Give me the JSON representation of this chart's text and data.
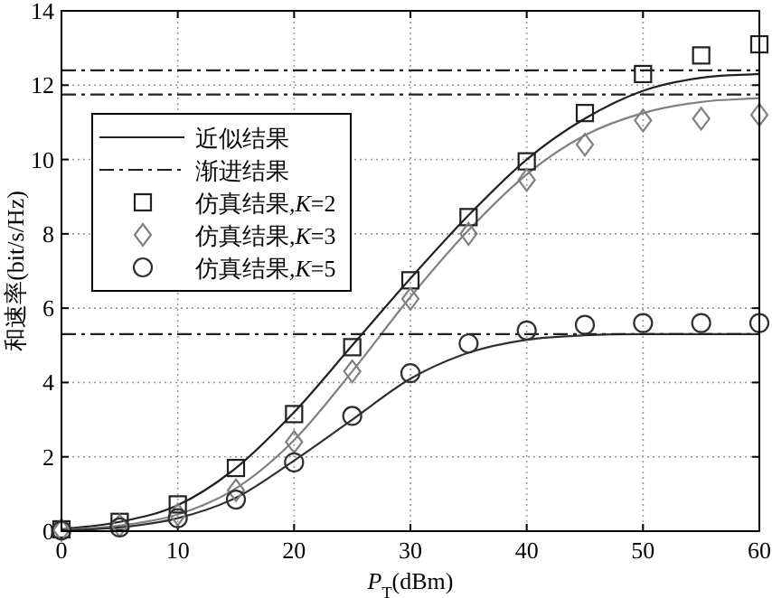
{
  "chart_data": {
    "type": "line",
    "xlabel": "*P*$_{T}$(dBm)",
    "ylabel": "和速率(bit/s/Hz)",
    "xlim": [
      0,
      60
    ],
    "ylim": [
      0,
      14
    ],
    "xticks": [
      0,
      10,
      20,
      30,
      40,
      50,
      60
    ],
    "yticks": [
      0,
      2,
      4,
      6,
      8,
      10,
      12,
      14
    ],
    "grid": true,
    "legend": "top left",
    "series": [
      {
        "name": "近似结果",
        "type": "line",
        "line_style": "solid",
        "marker": "none",
        "color": "#202020",
        "x": [
          0,
          5,
          10,
          15,
          20,
          25,
          30,
          35,
          40,
          45,
          50,
          55,
          60
        ],
        "values": [
          0.05,
          0.25,
          0.7,
          1.7,
          3.2,
          5.0,
          6.8,
          8.5,
          10.0,
          11.1,
          11.85,
          12.2,
          12.3
        ]
      },
      {
        "name": "渐进结果",
        "type": "line",
        "line_style": "dashed",
        "marker": "none",
        "color": "#202020",
        "x": [
          0,
          60
        ],
        "values": [
          12.4,
          12.4
        ]
      },
      {
        "name": "仿真结果,*K*=2",
        "type": "scatter",
        "marker": "square",
        "color": "#202020",
        "x": [
          0,
          5,
          10,
          15,
          20,
          25,
          30,
          35,
          40,
          45,
          50,
          55,
          60
        ],
        "values": [
          0.05,
          0.25,
          0.72,
          1.7,
          3.15,
          4.95,
          6.75,
          8.45,
          9.95,
          11.25,
          12.3,
          12.8,
          13.1
        ]
      },
      {
        "name": "仿真结果,*K*=3",
        "type": "scatter",
        "marker": "diamond",
        "color": "#808080",
        "x": [
          0,
          5,
          10,
          15,
          20,
          25,
          30,
          35,
          40,
          45,
          50,
          55,
          60
        ],
        "values": [
          0.03,
          0.15,
          0.45,
          1.1,
          2.4,
          4.3,
          6.25,
          8.0,
          9.45,
          10.4,
          11.05,
          11.1,
          11.2
        ]
      },
      {
        "name": "仿真结果,*K*=5",
        "type": "scatter",
        "marker": "circle",
        "color": "#303030",
        "x": [
          0,
          5,
          10,
          15,
          20,
          25,
          30,
          35,
          40,
          45,
          50,
          55,
          60
        ],
        "values": [
          0.02,
          0.1,
          0.35,
          0.85,
          1.85,
          3.1,
          4.25,
          5.05,
          5.4,
          5.55,
          5.6,
          5.6,
          5.6
        ]
      },
      {
        "type": "line",
        "line_style": "solid",
        "marker": "none",
        "color": "#808080",
        "x": [
          0,
          5,
          10,
          15,
          20,
          25,
          30,
          35,
          40,
          45,
          50,
          55,
          60
        ],
        "values": [
          0.03,
          0.15,
          0.45,
          1.15,
          2.45,
          4.3,
          6.3,
          8.1,
          9.6,
          10.65,
          11.25,
          11.55,
          11.65
        ]
      },
      {
        "type": "line",
        "line_style": "solid",
        "marker": "none",
        "color": "#303030",
        "x": [
          0,
          5,
          10,
          15,
          20,
          25,
          30,
          35,
          40,
          45,
          50,
          55,
          60
        ],
        "values": [
          0.02,
          0.1,
          0.35,
          0.9,
          1.9,
          3.0,
          4.1,
          4.8,
          5.15,
          5.27,
          5.3,
          5.3,
          5.3
        ]
      },
      {
        "type": "line",
        "line_style": "dashed",
        "marker": "none",
        "color": "#202020",
        "x": [
          0,
          60
        ],
        "values": [
          11.75,
          11.75
        ]
      },
      {
        "type": "line",
        "line_style": "dashed",
        "marker": "none",
        "color": "#202020",
        "x": [
          0,
          60
        ],
        "values": [
          5.3,
          5.3
        ]
      }
    ]
  }
}
